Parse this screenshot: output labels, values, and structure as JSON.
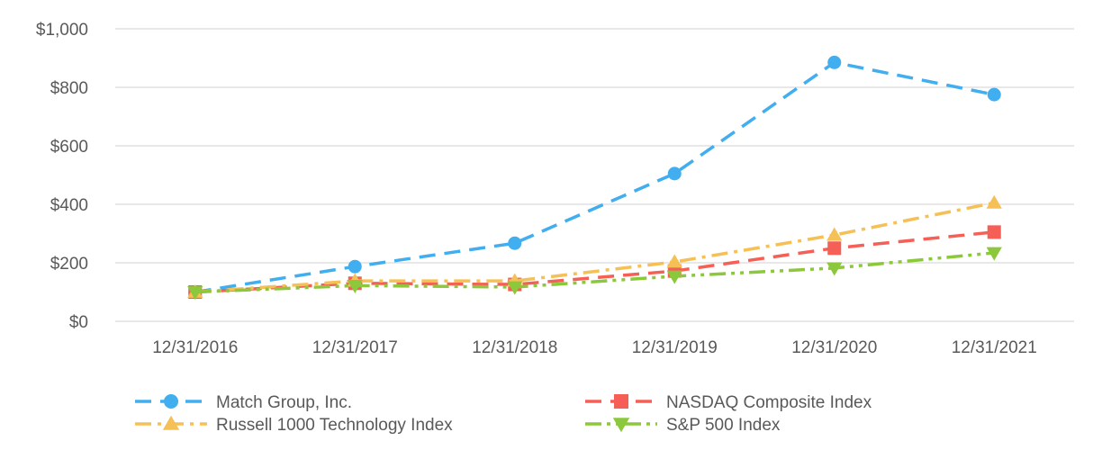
{
  "chart_data": {
    "type": "line",
    "title": "",
    "xlabel": "",
    "ylabel": "",
    "categories": [
      "12/31/2016",
      "12/31/2017",
      "12/31/2018",
      "12/31/2019",
      "12/31/2020",
      "12/31/2021"
    ],
    "ylim": [
      0,
      1000
    ],
    "yticks": [
      0,
      200,
      400,
      600,
      800,
      1000
    ],
    "ytick_labels": [
      "$0",
      "$200",
      "$400",
      "$600",
      "$800",
      "$1,000"
    ],
    "grid": true,
    "legend_position": "bottom",
    "series": [
      {
        "name": "Match Group, Inc.",
        "values": [
          100,
          187,
          267,
          505,
          885,
          775
        ],
        "color": "#41aef0",
        "marker": "circle",
        "dash": "dash"
      },
      {
        "name": "NASDAQ Composite Index",
        "values": [
          100,
          130,
          126,
          172,
          250,
          305
        ],
        "color": "#f55f55",
        "marker": "square",
        "dash": "dash"
      },
      {
        "name": "Russell 1000 Technology Index",
        "values": [
          100,
          138,
          138,
          203,
          295,
          405
        ],
        "color": "#f5c055",
        "marker": "triangle-up",
        "dash": "dashdot"
      },
      {
        "name": "S&P 500 Index",
        "values": [
          100,
          122,
          117,
          154,
          182,
          234
        ],
        "color": "#8cc83c",
        "marker": "triangle-down",
        "dash": "dashdotdot"
      }
    ]
  }
}
